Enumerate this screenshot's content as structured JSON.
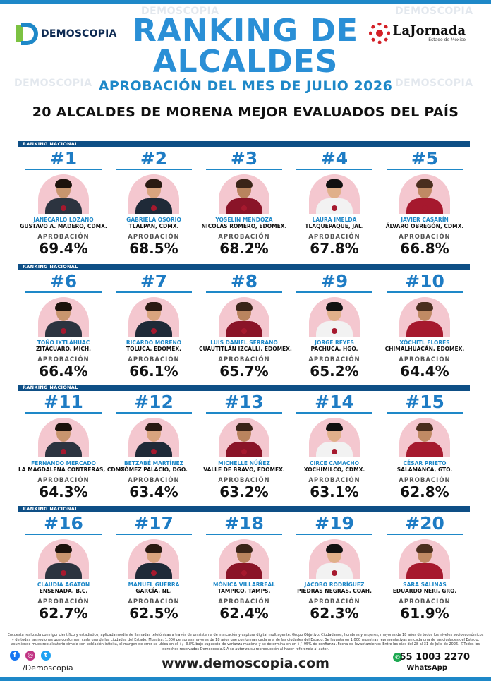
{
  "header": {
    "logo_left": "DEMOSCOPIA",
    "logo_right": "LaJornada",
    "logo_right_sub": "Estado de México",
    "title_line1": "RANKING DE",
    "title_line2": "ALCALDES",
    "subtitle": "APROBACIÓN DEL MES DE JULIO 2026",
    "heading": "20 ALCALDES DE MORENA MEJOR EVALUADOS DEL PAÍS"
  },
  "watermark": "DEMOSCOPIA",
  "rank_label": "RANKING NACIONAL",
  "approval_label": "APROBACIÓN",
  "rows": [
    [
      {
        "rank": "#1",
        "name": "JANECARLO LOZANO",
        "place": "GUSTAVO A. MADERO, CDMX.",
        "value": "69.4%"
      },
      {
        "rank": "#2",
        "name": "GABRIELA OSORIO",
        "place": "TLALPAN, CDMX.",
        "value": "68.5%"
      },
      {
        "rank": "#3",
        "name": "YOSELIN MENDOZA",
        "place": "NICOLÁS ROMERO, EDOMEX.",
        "value": "68.2%"
      },
      {
        "rank": "#4",
        "name": "LAURA IMELDA",
        "place": "TLAQUEPAQUE, JAL.",
        "value": "67.8%"
      },
      {
        "rank": "#5",
        "name": "JAVIER CASARÍN",
        "place": "ÁLVARO OBREGÓN, CDMX.",
        "value": "66.8%"
      }
    ],
    [
      {
        "rank": "#6",
        "name": "TOÑO IXTLÁHUAC",
        "place": "ZITÁCUARO, MICH.",
        "value": "66.4%"
      },
      {
        "rank": "#7",
        "name": "RICARDO MORENO",
        "place": "TOLUCA, EDOMEX.",
        "value": "66.1%"
      },
      {
        "rank": "#8",
        "name": "LUIS DANIEL SERRANO",
        "place": "CUAUTITLÁN IZCALLI, EDOMEX.",
        "value": "65.7%"
      },
      {
        "rank": "#9",
        "name": "JORGE REYES",
        "place": "PACHUCA, HGO.",
        "value": "65.2%"
      },
      {
        "rank": "#10",
        "name": "XÓCHITL FLORES",
        "place": "CHIMALHUACÁN, EDOMEX.",
        "value": "64.4%"
      }
    ],
    [
      {
        "rank": "#11",
        "name": "FERNANDO MERCADO",
        "place": "LA MAGDALENA CONTRERAS, CDMX.",
        "value": "64.3%"
      },
      {
        "rank": "#12",
        "name": "BETZABÉ MARTÍNEZ",
        "place": "GÓMEZ PALACIO, DGO.",
        "value": "63.4%"
      },
      {
        "rank": "#13",
        "name": "MICHELLE NÚÑEZ",
        "place": "VALLE DE BRAVO, EDOMEX.",
        "value": "63.2%"
      },
      {
        "rank": "#14",
        "name": "CIRCE CAMACHO",
        "place": "XOCHIMILCO, CDMX.",
        "value": "63.1%"
      },
      {
        "rank": "#15",
        "name": "CÉSAR PRIETO",
        "place": "SALAMANCA, GTO.",
        "value": "62.8%"
      }
    ],
    [
      {
        "rank": "#16",
        "name": "CLAUDIA AGATÓN",
        "place": "ENSENADA, B.C.",
        "value": "62.7%"
      },
      {
        "rank": "#17",
        "name": "MANUEL GUERRA",
        "place": "GARCÍA, NL.",
        "value": "62.5%"
      },
      {
        "rank": "#18",
        "name": "MÓNICA VILLARREAL",
        "place": "TAMPICO, TAMPS.",
        "value": "62.4%"
      },
      {
        "rank": "#19",
        "name": "JACOBO RODRÍGUEZ",
        "place": "PIEDRAS NEGRAS, COAH.",
        "value": "62.3%"
      },
      {
        "rank": "#20",
        "name": "SARA SALINAS",
        "place": "EDUARDO NERI, GRO.",
        "value": "61.9%"
      }
    ]
  ],
  "footer": {
    "note": "Encuesta realizada con rigor científico y estadístico, aplicada mediante llamadas telefónicas a través de un sistema de marcación y captura digital multiagente. Grupo Objetivo: Ciudadanos, hombres y mujeres, mayores de 18 años de todos los niveles socioeconómicos y de todas las regiones que conforman cada una de las ciudades del Estado. Muestra: 1,000 personas mayores de 18 años que conforman cada una de las ciudades del Estado. Se levantaron 1,000 muestras representativas en cada una de las ciudades del Estado, asumiendo muestreo aleatorio simple con población infinita, el margen de error se ubica en el +/- 3.8% bajo supuesto de varianza máxima y se determina en un +/- 95% de confianza. Fecha de levantamiento: Entre los días del 28 al 31 de Julio de 2026. ©Todos los derechos reservados Demoscopia.S.A se autoriza su reproducción al hacer referencia al autor.",
    "handle": "/Demoscopia",
    "website": "www.demoscopia.com",
    "phone": "55 1003 2270",
    "whatsapp": "WhatsApp",
    "icons": [
      "facebook-icon",
      "instagram-icon",
      "twitter-icon",
      "whatsapp-icon"
    ]
  },
  "colors": {
    "accent": "#1e88c8",
    "strip": "#0e4f86",
    "portrait_bg": "#f4c7cf"
  }
}
